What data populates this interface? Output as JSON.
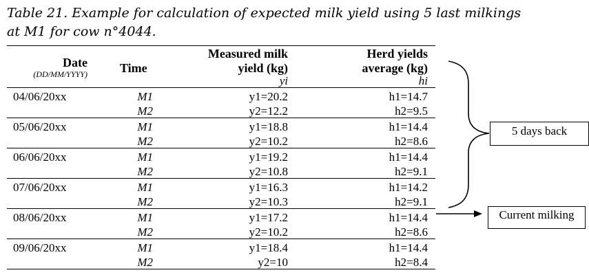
{
  "caption": "Table 21. Example for calculation of expected milk yield using 5 last milkings at M1 for cow n°4044.",
  "headers": {
    "date": "Date",
    "date_format": "(DD/MM/YYYY)",
    "time": "Time",
    "measured_line1": "Measured milk",
    "measured_line2": "yield (kg)",
    "measured_symbol": "yi",
    "herd_line1": "Herd yields",
    "herd_line2": "average (kg)",
    "herd_symbol": "hi"
  },
  "rows": [
    {
      "date": "04/06/20xx",
      "t1": "M1",
      "t2": "M2",
      "y1": "y1=20.2",
      "y2": "y2=12.2",
      "h1": "h1=14.7",
      "h2": "h2=9.5"
    },
    {
      "date": "05/06/20xx",
      "t1": "M1",
      "t2": "M2",
      "y1": "y1=18.8",
      "y2": "y2=10.2",
      "h1": "h1=14.4",
      "h2": "h2=8.6"
    },
    {
      "date": "06/06/20xx",
      "t1": "M1",
      "t2": "M2",
      "y1": "y1=19.2",
      "y2": "y2=10.8",
      "h1": "h1=14.4",
      "h2": "h2=9.1"
    },
    {
      "date": "07/06/20xx",
      "t1": "M1",
      "t2": "M2",
      "y1": "y1=16.3",
      "y2": "y2=10.3",
      "h1": "h1=14.2",
      "h2": "h2=9.1"
    },
    {
      "date": "08/06/20xx",
      "t1": "M1",
      "t2": "M2",
      "y1": "y1=17.2",
      "y2": "y2=10.2",
      "h1": "h1=14.4",
      "h2": "h2=8.6"
    },
    {
      "date": "09/06/20xx",
      "t1": "M1",
      "t2": "M2",
      "y1": "y1=18.4",
      "y2": "y2=10",
      "h1": "h1=14.4",
      "h2": "h2=8.4"
    }
  ],
  "annotations": {
    "days_back": "5 days back",
    "current_milking": "Current milking"
  }
}
